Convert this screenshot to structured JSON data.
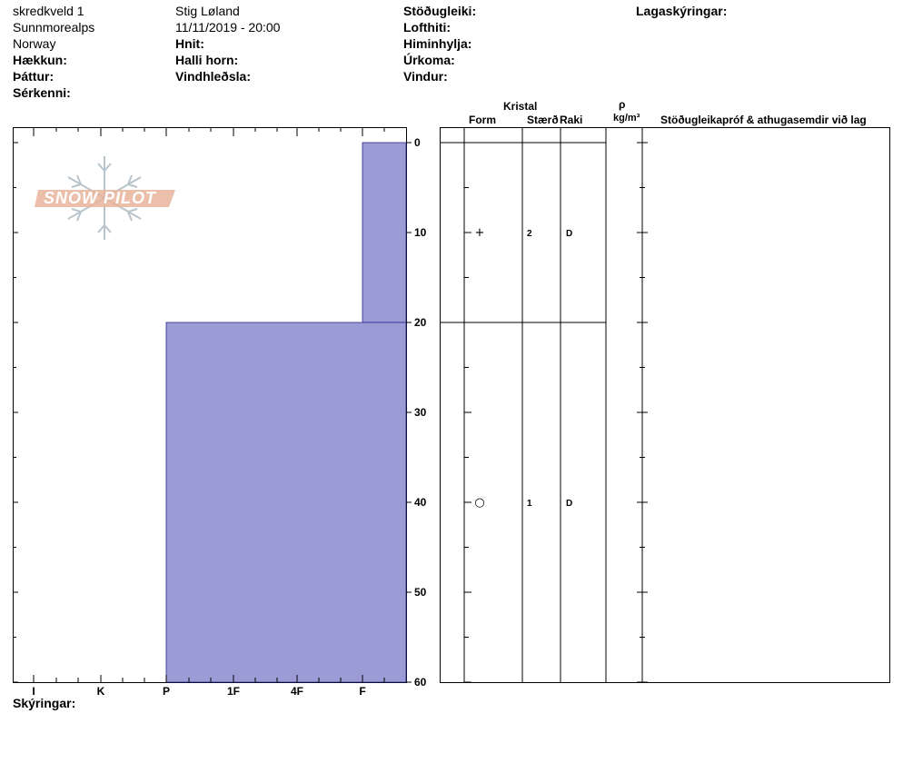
{
  "header": {
    "site_name": "skredkveld 1",
    "region": "Sunnmorealps",
    "country": "Norway",
    "elevation_label": "Hækkun:",
    "aspect_label": "Þáttur:",
    "features_label": "Sérkenni:",
    "observer": "Stig Løland",
    "datetime": "11/11/2019 - 20:00",
    "coords_label": "Hnit:",
    "slope_label": "Halli horn:",
    "wind_loading_label": "Vindhleðsla:",
    "stability_label": "Stöðugleiki:",
    "air_temp_label": "Lofthiti:",
    "sky_label": "Himinhylja:",
    "precip_label": "Úrkoma:",
    "wind_label": "Vindur:",
    "layer_notes_label": "Lagaskýringar:"
  },
  "table_headers": {
    "crystal": "Kristal",
    "form": "Form",
    "size": "Stærð",
    "moisture": "Raki",
    "rho": "ρ",
    "density_unit": "kg/m³",
    "stability_notes": "Stöðugleikapróf & athugasemdir við lag"
  },
  "footer": {
    "comments_label": "Skýringar:"
  },
  "watermark": {
    "text": "SNOW PILOT",
    "icon": "snowflake-icon",
    "color": "#e8b49a"
  },
  "colors": {
    "hardness_fill": "#9b9bd6",
    "hardness_stroke": "#2a2a8a"
  },
  "chart_data": {
    "type": "bar",
    "title": "",
    "x_ticks": [
      "I",
      "K",
      "P",
      "1F",
      "4F",
      "F"
    ],
    "y_ticks": [
      "0",
      "10",
      "20",
      "30",
      "40",
      "50",
      "60"
    ],
    "ylim": [
      0,
      60
    ],
    "layers": [
      {
        "top": 0,
        "bottom": 20,
        "hardness": "F",
        "form": "+",
        "size": "2",
        "moisture": "D"
      },
      {
        "top": 20,
        "bottom": 60,
        "hardness": "P",
        "form": "○",
        "size": "1",
        "moisture": "D"
      }
    ]
  }
}
